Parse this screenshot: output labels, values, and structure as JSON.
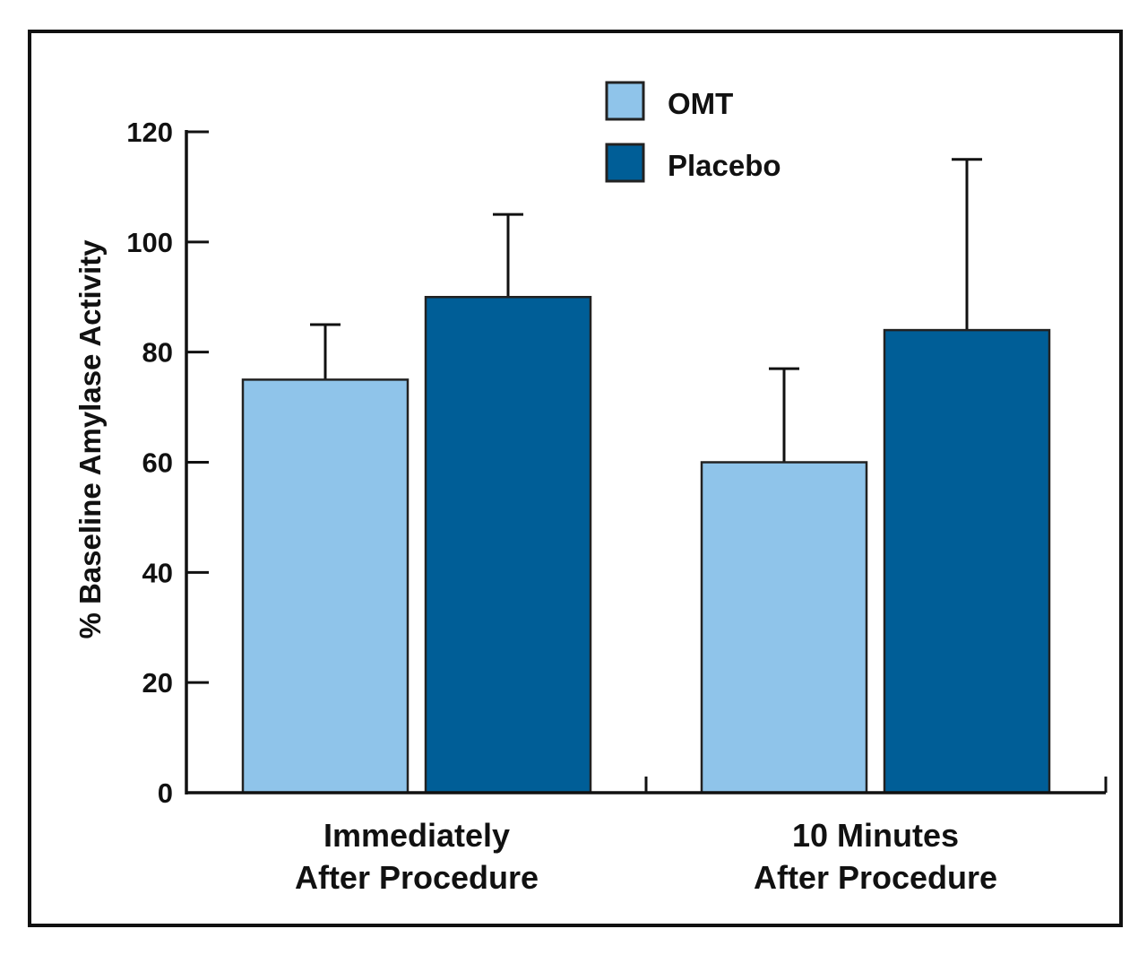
{
  "chart_data": {
    "type": "bar",
    "title": "",
    "xlabel": "",
    "ylabel": "% Baseline Amylase Activity",
    "ylim": [
      0,
      120
    ],
    "yticks": [
      0,
      20,
      40,
      60,
      80,
      100,
      120
    ],
    "grid": false,
    "legend_placement": "top-center",
    "categories": [
      [
        "Immediately",
        "After Procedure"
      ],
      [
        "10 Minutes",
        "After Procedure"
      ]
    ],
    "series": [
      {
        "name": "OMT",
        "color": "#8fc4ea",
        "values": [
          75,
          60
        ],
        "error_upper": [
          85,
          77
        ]
      },
      {
        "name": "Placebo",
        "color": "#005e97",
        "values": [
          90,
          84
        ],
        "error_upper": [
          105,
          115
        ]
      }
    ],
    "error_bars": "upper only"
  }
}
